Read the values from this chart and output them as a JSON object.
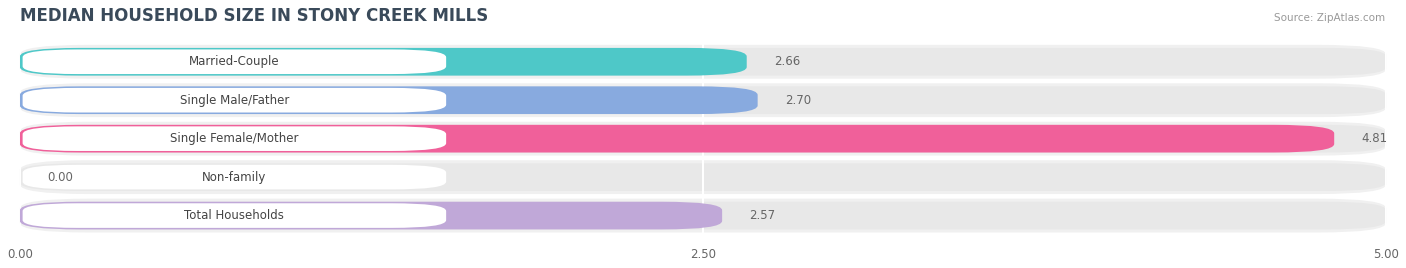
{
  "title": "MEDIAN HOUSEHOLD SIZE IN STONY CREEK MILLS",
  "source": "Source: ZipAtlas.com",
  "categories": [
    "Married-Couple",
    "Single Male/Father",
    "Single Female/Mother",
    "Non-family",
    "Total Households"
  ],
  "values": [
    2.66,
    2.7,
    4.81,
    0.0,
    2.57
  ],
  "bar_colors": [
    "#4ec8c8",
    "#88aadf",
    "#f0609a",
    "#f5c89a",
    "#c0a8d8"
  ],
  "xlim": [
    0,
    5.0
  ],
  "xticks": [
    0.0,
    2.5,
    5.0
  ],
  "xtick_labels": [
    "0.00",
    "2.50",
    "5.00"
  ],
  "label_fontsize": 8.5,
  "value_fontsize": 8.5,
  "title_fontsize": 12,
  "background_color": "#ffffff",
  "row_bg_color": "#f0f0f0",
  "track_color": "#e8e8e8",
  "figsize": [
    14.06,
    2.68
  ]
}
